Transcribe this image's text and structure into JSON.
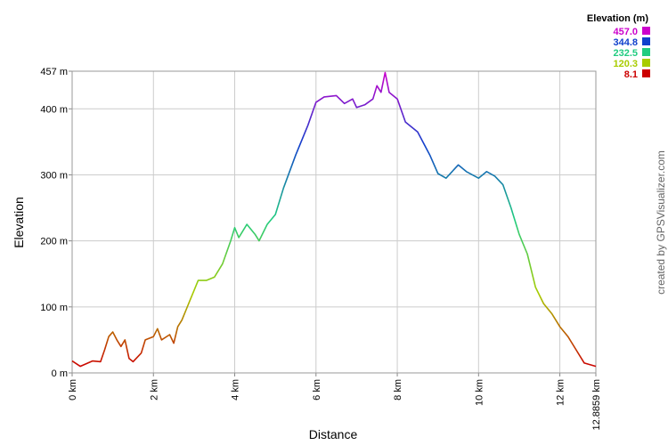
{
  "chart_data": {
    "type": "line",
    "xlabel": "Distance",
    "ylabel": "Elevation",
    "credit": "created by GPSVisualizer.com",
    "xlim": [
      0,
      12.8859
    ],
    "ylim": [
      0,
      457
    ],
    "xticks": [
      {
        "value": 0,
        "label": "0 km"
      },
      {
        "value": 2,
        "label": "2 km"
      },
      {
        "value": 4,
        "label": "4 km"
      },
      {
        "value": 6,
        "label": "6 km"
      },
      {
        "value": 8,
        "label": "8 km"
      },
      {
        "value": 10,
        "label": "10 km"
      },
      {
        "value": 12,
        "label": "12 km"
      },
      {
        "value": 12.8859,
        "label": "12.8859 km"
      }
    ],
    "yticks": [
      {
        "value": 0,
        "label": "0 m"
      },
      {
        "value": 100,
        "label": "100 m"
      },
      {
        "value": 200,
        "label": "200 m"
      },
      {
        "value": 300,
        "label": "300 m"
      },
      {
        "value": 400,
        "label": "400 m"
      },
      {
        "value": 457,
        "label": "457 m"
      }
    ],
    "grid": true,
    "legend": {
      "title": "Elevation (m)",
      "position": "top-right",
      "entries": [
        {
          "value": 457,
          "label": "457.0",
          "color": "#cc00cc"
        },
        {
          "value": 344.8,
          "label": "344.8",
          "color": "#1040cc"
        },
        {
          "value": 232.5,
          "label": "232.5",
          "color": "#20cc80"
        },
        {
          "value": 120.3,
          "label": "120.3",
          "color": "#a8cc00"
        },
        {
          "value": 8.1,
          "label": "8.1",
          "color": "#cc0000"
        }
      ]
    },
    "series": [
      {
        "x": [
          0,
          0.2,
          0.5,
          0.7,
          0.8,
          0.9,
          1.0,
          1.1,
          1.2,
          1.3,
          1.4,
          1.5,
          1.7,
          1.8,
          2.0,
          2.1,
          2.2,
          2.4,
          2.5,
          2.6,
          2.7,
          2.8,
          2.9,
          3.0,
          3.1,
          3.3,
          3.5,
          3.7,
          3.9,
          4.0,
          4.1,
          4.3,
          4.5,
          4.6,
          4.8,
          5.0,
          5.2,
          5.5,
          5.8,
          6.0,
          6.2,
          6.5,
          6.7,
          6.9,
          7.0,
          7.2,
          7.4,
          7.5,
          7.6,
          7.7,
          7.8,
          8.0,
          8.2,
          8.5,
          8.8,
          9.0,
          9.2,
          9.5,
          9.7,
          10.0,
          10.2,
          10.4,
          10.6,
          10.8,
          11.0,
          11.2,
          11.4,
          11.6,
          11.8,
          12.0,
          12.2,
          12.4,
          12.6,
          12.8859
        ],
        "values": [
          18,
          10,
          18,
          17,
          35,
          55,
          62,
          50,
          40,
          50,
          22,
          17,
          30,
          50,
          55,
          67,
          50,
          58,
          45,
          70,
          80,
          95,
          110,
          125,
          140,
          140,
          145,
          165,
          200,
          220,
          205,
          225,
          210,
          200,
          225,
          240,
          280,
          330,
          375,
          410,
          418,
          420,
          408,
          415,
          402,
          406,
          415,
          435,
          425,
          455,
          425,
          415,
          380,
          365,
          330,
          302,
          295,
          315,
          305,
          295,
          305,
          298,
          285,
          250,
          210,
          180,
          130,
          105,
          90,
          70,
          55,
          35,
          15,
          10
        ]
      }
    ]
  }
}
